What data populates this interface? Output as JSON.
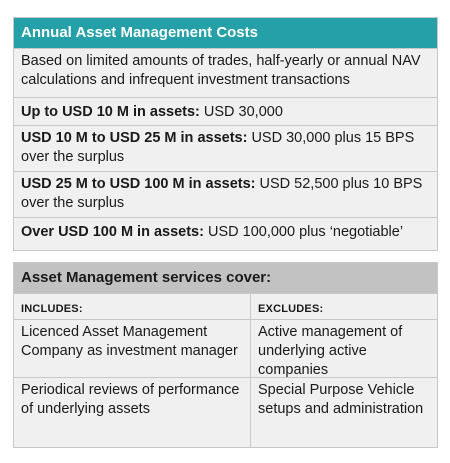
{
  "costs": {
    "title": "Annual Asset Management Costs",
    "intro": "Based on limited amounts of trades, half-yearly or annual NAV calculations and infrequent investment transactions",
    "tiers": [
      {
        "label": "Up to USD 10 M in assets:",
        "text": " USD 30,000"
      },
      {
        "label": "USD 10 M to USD 25 M in assets:",
        "text": " USD 30,000 plus 15 BPS over the surplus"
      },
      {
        "label": "USD 25 M to USD 100 M in assets:",
        "text": " USD 52,500 plus 10 BPS over the surplus"
      },
      {
        "label": "Over USD 100 M in assets:",
        "text": " USD 100,000 plus ‘negotiable’"
      }
    ]
  },
  "services": {
    "title": "Asset Management services cover:",
    "includes_header": "INCLUDES:",
    "excludes_header": "EXCLUDES:",
    "rows": [
      {
        "includes": "Licenced Asset Management Company as investment manager",
        "excludes": "Active management of underlying active companies"
      },
      {
        "includes": "Periodical reviews of performance of underlying assets",
        "excludes": "Special Purpose Vehicle setups and administration"
      }
    ]
  },
  "colors": {
    "teal_header": "#25a0a8",
    "gray_header": "#c2c2c2",
    "panel_bg": "#f0f0f0"
  }
}
